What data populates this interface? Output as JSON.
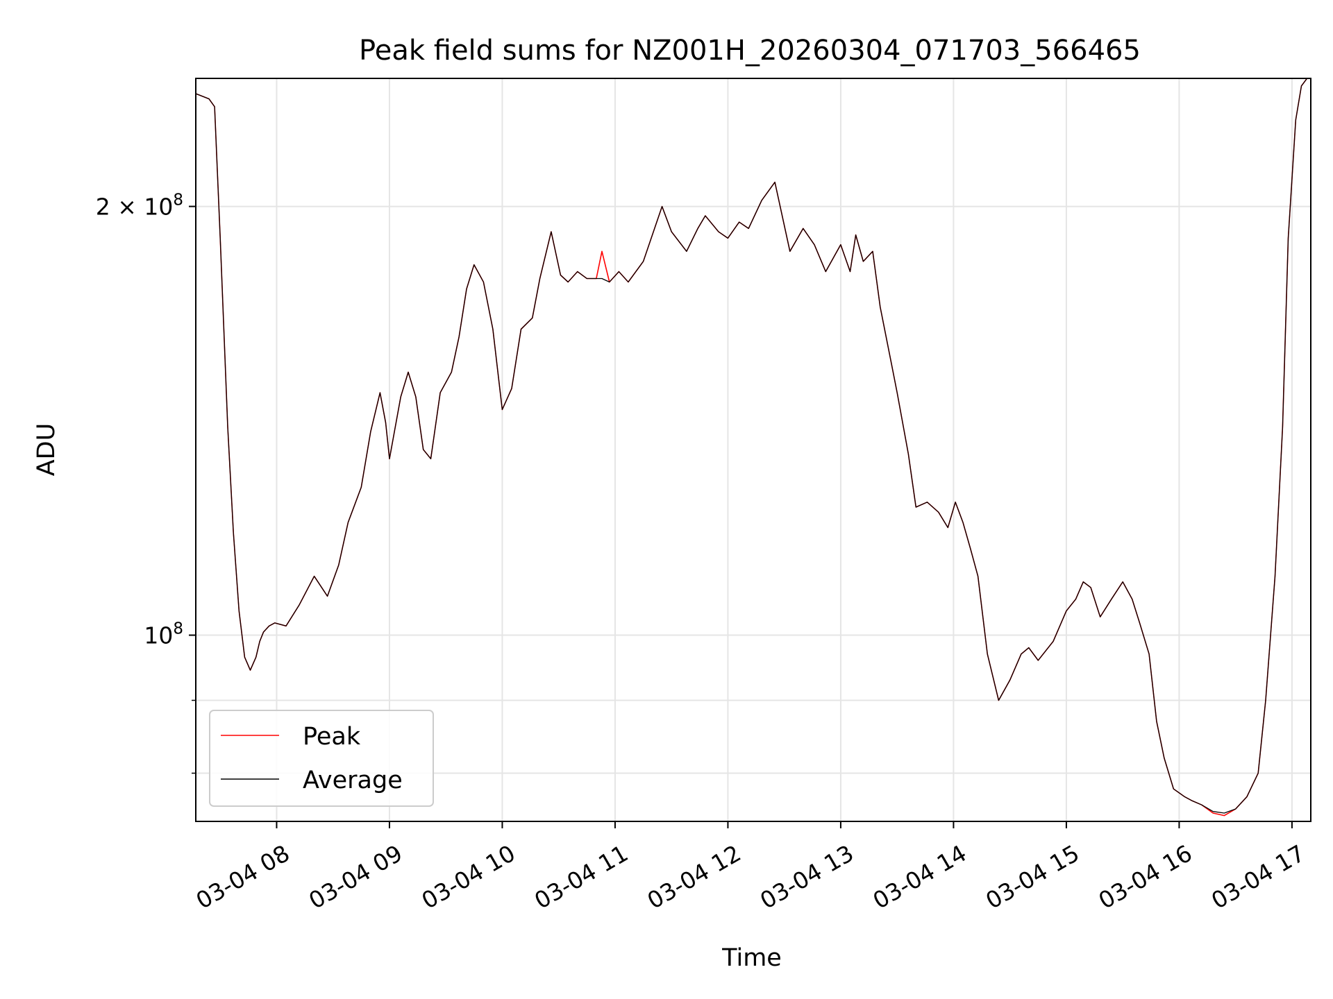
{
  "chart_data": {
    "type": "line",
    "title": "Peak field sums for NZ001H_20260304_071703_566465",
    "xlabel": "Time",
    "ylabel": "ADU",
    "y_scale": "log",
    "grid": true,
    "legend_position": "lower-left",
    "xlim": [
      "2026-03-04 07:17",
      "2026-03-04 17:10"
    ],
    "ylim": [
      74000000,
      246000000
    ],
    "x_ticks": [
      "03-04 08",
      "03-04 09",
      "03-04 10",
      "03-04 11",
      "03-04 12",
      "03-04 13",
      "03-04 14",
      "03-04 15",
      "03-04 16",
      "03-04 17"
    ],
    "y_major_ticks": [
      {
        "value": 100000000,
        "mantissa": "",
        "base": "10",
        "exp": "8"
      },
      {
        "value": 200000000,
        "mantissa": "2 × ",
        "base": "10",
        "exp": "8"
      }
    ],
    "y_minor_ticks": [
      90000000,
      80000000
    ],
    "x": [
      "07:17",
      "07:24",
      "07:27",
      "07:30",
      "07:34",
      "07:37",
      "07:40",
      "07:43",
      "07:46",
      "07:49",
      "07:51",
      "07:53",
      "07:56",
      "07:59",
      "08:05",
      "08:12",
      "08:20",
      "08:27",
      "08:33",
      "08:38",
      "08:45",
      "08:50",
      "08:55",
      "08:58",
      "09:00",
      "09:06",
      "09:10",
      "09:14",
      "09:18",
      "09:22",
      "09:27",
      "09:33",
      "09:37",
      "09:41",
      "09:45",
      "09:50",
      "09:55",
      "10:00",
      "10:05",
      "10:10",
      "10:16",
      "10:20",
      "10:26",
      "10:31",
      "10:35",
      "10:40",
      "10:45",
      "10:50",
      "10:53",
      "10:57",
      "11:02",
      "11:07",
      "11:15",
      "11:25",
      "11:30",
      "11:38",
      "11:44",
      "11:48",
      "11:55",
      "12:00",
      "12:06",
      "12:11",
      "12:18",
      "12:25",
      "12:33",
      "12:40",
      "12:46",
      "12:52",
      "13:00",
      "13:05",
      "13:08",
      "13:12",
      "13:17",
      "13:21",
      "13:27",
      "13:30",
      "13:36",
      "13:40",
      "13:46",
      "13:52",
      "13:57",
      "14:01",
      "14:05",
      "14:09",
      "14:13",
      "14:18",
      "14:24",
      "14:30",
      "14:36",
      "14:40",
      "14:45",
      "14:53",
      "15:00",
      "15:05",
      "15:09",
      "15:13",
      "15:18",
      "15:24",
      "15:30",
      "15:35",
      "15:39",
      "15:44",
      "15:48",
      "15:52",
      "15:57",
      "16:03",
      "16:07",
      "16:12",
      "16:18",
      "16:24",
      "16:30",
      "16:36",
      "16:42",
      "16:46",
      "16:51",
      "16:55",
      "16:58",
      "17:02",
      "17:05",
      "17:08",
      "17:10"
    ],
    "series": [
      {
        "name": "Peak",
        "color": "#ff0000",
        "values": [
          240000000,
          238000000,
          235000000,
          190000000,
          140000000,
          118000000,
          104000000,
          96500000,
          94500000,
          96500000,
          99000000,
          100500000,
          101500000,
          102000000,
          101500000,
          105000000,
          110000000,
          106500000,
          112000000,
          120000000,
          127000000,
          139000000,
          148000000,
          141000000,
          133000000,
          147000000,
          153000000,
          147000000,
          135000000,
          133000000,
          148000000,
          153000000,
          162000000,
          175000000,
          182000000,
          177000000,
          164000000,
          144000000,
          149000000,
          164000000,
          167000000,
          178000000,
          192000000,
          179000000,
          177000000,
          180000000,
          178000000,
          178000000,
          186000000,
          177000000,
          180000000,
          177000000,
          183000000,
          200000000,
          192000000,
          186000000,
          193000000,
          197000000,
          192000000,
          190000000,
          195000000,
          193000000,
          202000000,
          208000000,
          186000000,
          193000000,
          188000000,
          180000000,
          188000000,
          180000000,
          191000000,
          183000000,
          186000000,
          170000000,
          155000000,
          148000000,
          134000000,
          123000000,
          124000000,
          122000000,
          119000000,
          124000000,
          120000000,
          115000000,
          110000000,
          97000000,
          90000000,
          93000000,
          97000000,
          98000000,
          96000000,
          99000000,
          104000000,
          106000000,
          109000000,
          108000000,
          103000000,
          106000000,
          109000000,
          106000000,
          102000000,
          97000000,
          87000000,
          82000000,
          78000000,
          77000000,
          76500000,
          76000000,
          75000000,
          74700000,
          75500000,
          77000000,
          80000000,
          90000000,
          110000000,
          140000000,
          190000000,
          230000000,
          243000000,
          246000000,
          246000000
        ]
      },
      {
        "name": "Average",
        "color": "#000000",
        "values": [
          240000000,
          238000000,
          235000000,
          190000000,
          140000000,
          118000000,
          104000000,
          96500000,
          94500000,
          96500000,
          99000000,
          100500000,
          101500000,
          102000000,
          101500000,
          105000000,
          110000000,
          106500000,
          112000000,
          120000000,
          127000000,
          139000000,
          148000000,
          141000000,
          133000000,
          147000000,
          153000000,
          147000000,
          135000000,
          133000000,
          148000000,
          153000000,
          162000000,
          175000000,
          182000000,
          177000000,
          164000000,
          144000000,
          149000000,
          164000000,
          167000000,
          178000000,
          192000000,
          179000000,
          177000000,
          180000000,
          178000000,
          178000000,
          178000000,
          177000000,
          180000000,
          177000000,
          183000000,
          200000000,
          192000000,
          186000000,
          193000000,
          197000000,
          192000000,
          190000000,
          195000000,
          193000000,
          202000000,
          208000000,
          186000000,
          193000000,
          188000000,
          180000000,
          188000000,
          180000000,
          191000000,
          183000000,
          186000000,
          170000000,
          155000000,
          148000000,
          134000000,
          123000000,
          124000000,
          122000000,
          119000000,
          124000000,
          120000000,
          115000000,
          110000000,
          97000000,
          90000000,
          93000000,
          97000000,
          98000000,
          96000000,
          99000000,
          104000000,
          106000000,
          109000000,
          108000000,
          103000000,
          106000000,
          109000000,
          106000000,
          102000000,
          97000000,
          87000000,
          82000000,
          78000000,
          77000000,
          76500000,
          76000000,
          75200000,
          75000000,
          75500000,
          77000000,
          80000000,
          90000000,
          110000000,
          140000000,
          190000000,
          230000000,
          243000000,
          246000000,
          246000000
        ]
      }
    ]
  }
}
